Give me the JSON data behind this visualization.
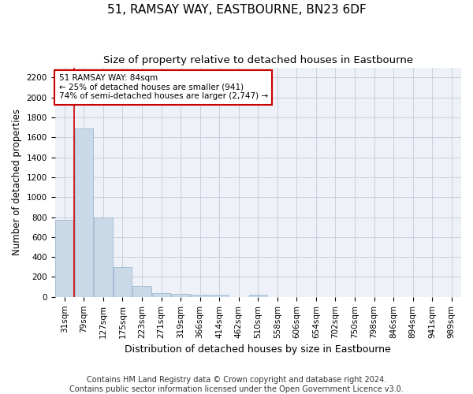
{
  "title": "51, RAMSAY WAY, EASTBOURNE, BN23 6DF",
  "subtitle": "Size of property relative to detached houses in Eastbourne",
  "xlabel": "Distribution of detached houses by size in Eastbourne",
  "ylabel": "Number of detached properties",
  "footer_line1": "Contains HM Land Registry data © Crown copyright and database right 2024.",
  "footer_line2": "Contains public sector information licensed under the Open Government Licence v3.0.",
  "categories": [
    "31sqm",
    "79sqm",
    "127sqm",
    "175sqm",
    "223sqm",
    "271sqm",
    "319sqm",
    "366sqm",
    "414sqm",
    "462sqm",
    "510sqm",
    "558sqm",
    "606sqm",
    "654sqm",
    "702sqm",
    "750sqm",
    "798sqm",
    "846sqm",
    "894sqm",
    "941sqm",
    "989sqm"
  ],
  "bar_heights": [
    770,
    1690,
    795,
    300,
    110,
    42,
    32,
    25,
    20,
    0,
    25,
    0,
    0,
    0,
    0,
    0,
    0,
    0,
    0,
    0,
    0
  ],
  "bar_color": "#c9d9e8",
  "bar_edge_color": "#a0b8d0",
  "ylim": [
    0,
    2300
  ],
  "yticks": [
    0,
    200,
    400,
    600,
    800,
    1000,
    1200,
    1400,
    1600,
    1800,
    2000,
    2200
  ],
  "red_line_x": 0.5,
  "annotation_text_line1": "51 RAMSAY WAY: 84sqm",
  "annotation_text_line2": "← 25% of detached houses are smaller (941)",
  "annotation_text_line3": "74% of semi-detached houses are larger (2,747) →",
  "annotation_box_color": "#ffffff",
  "annotation_box_edge_color": "#cc0000",
  "red_line_color": "#cc0000",
  "grid_color": "#c8d0dc",
  "background_color": "#eef2f8",
  "title_fontsize": 11,
  "subtitle_fontsize": 9.5,
  "ylabel_fontsize": 8.5,
  "xlabel_fontsize": 9,
  "tick_fontsize": 7.5,
  "footer_fontsize": 7
}
